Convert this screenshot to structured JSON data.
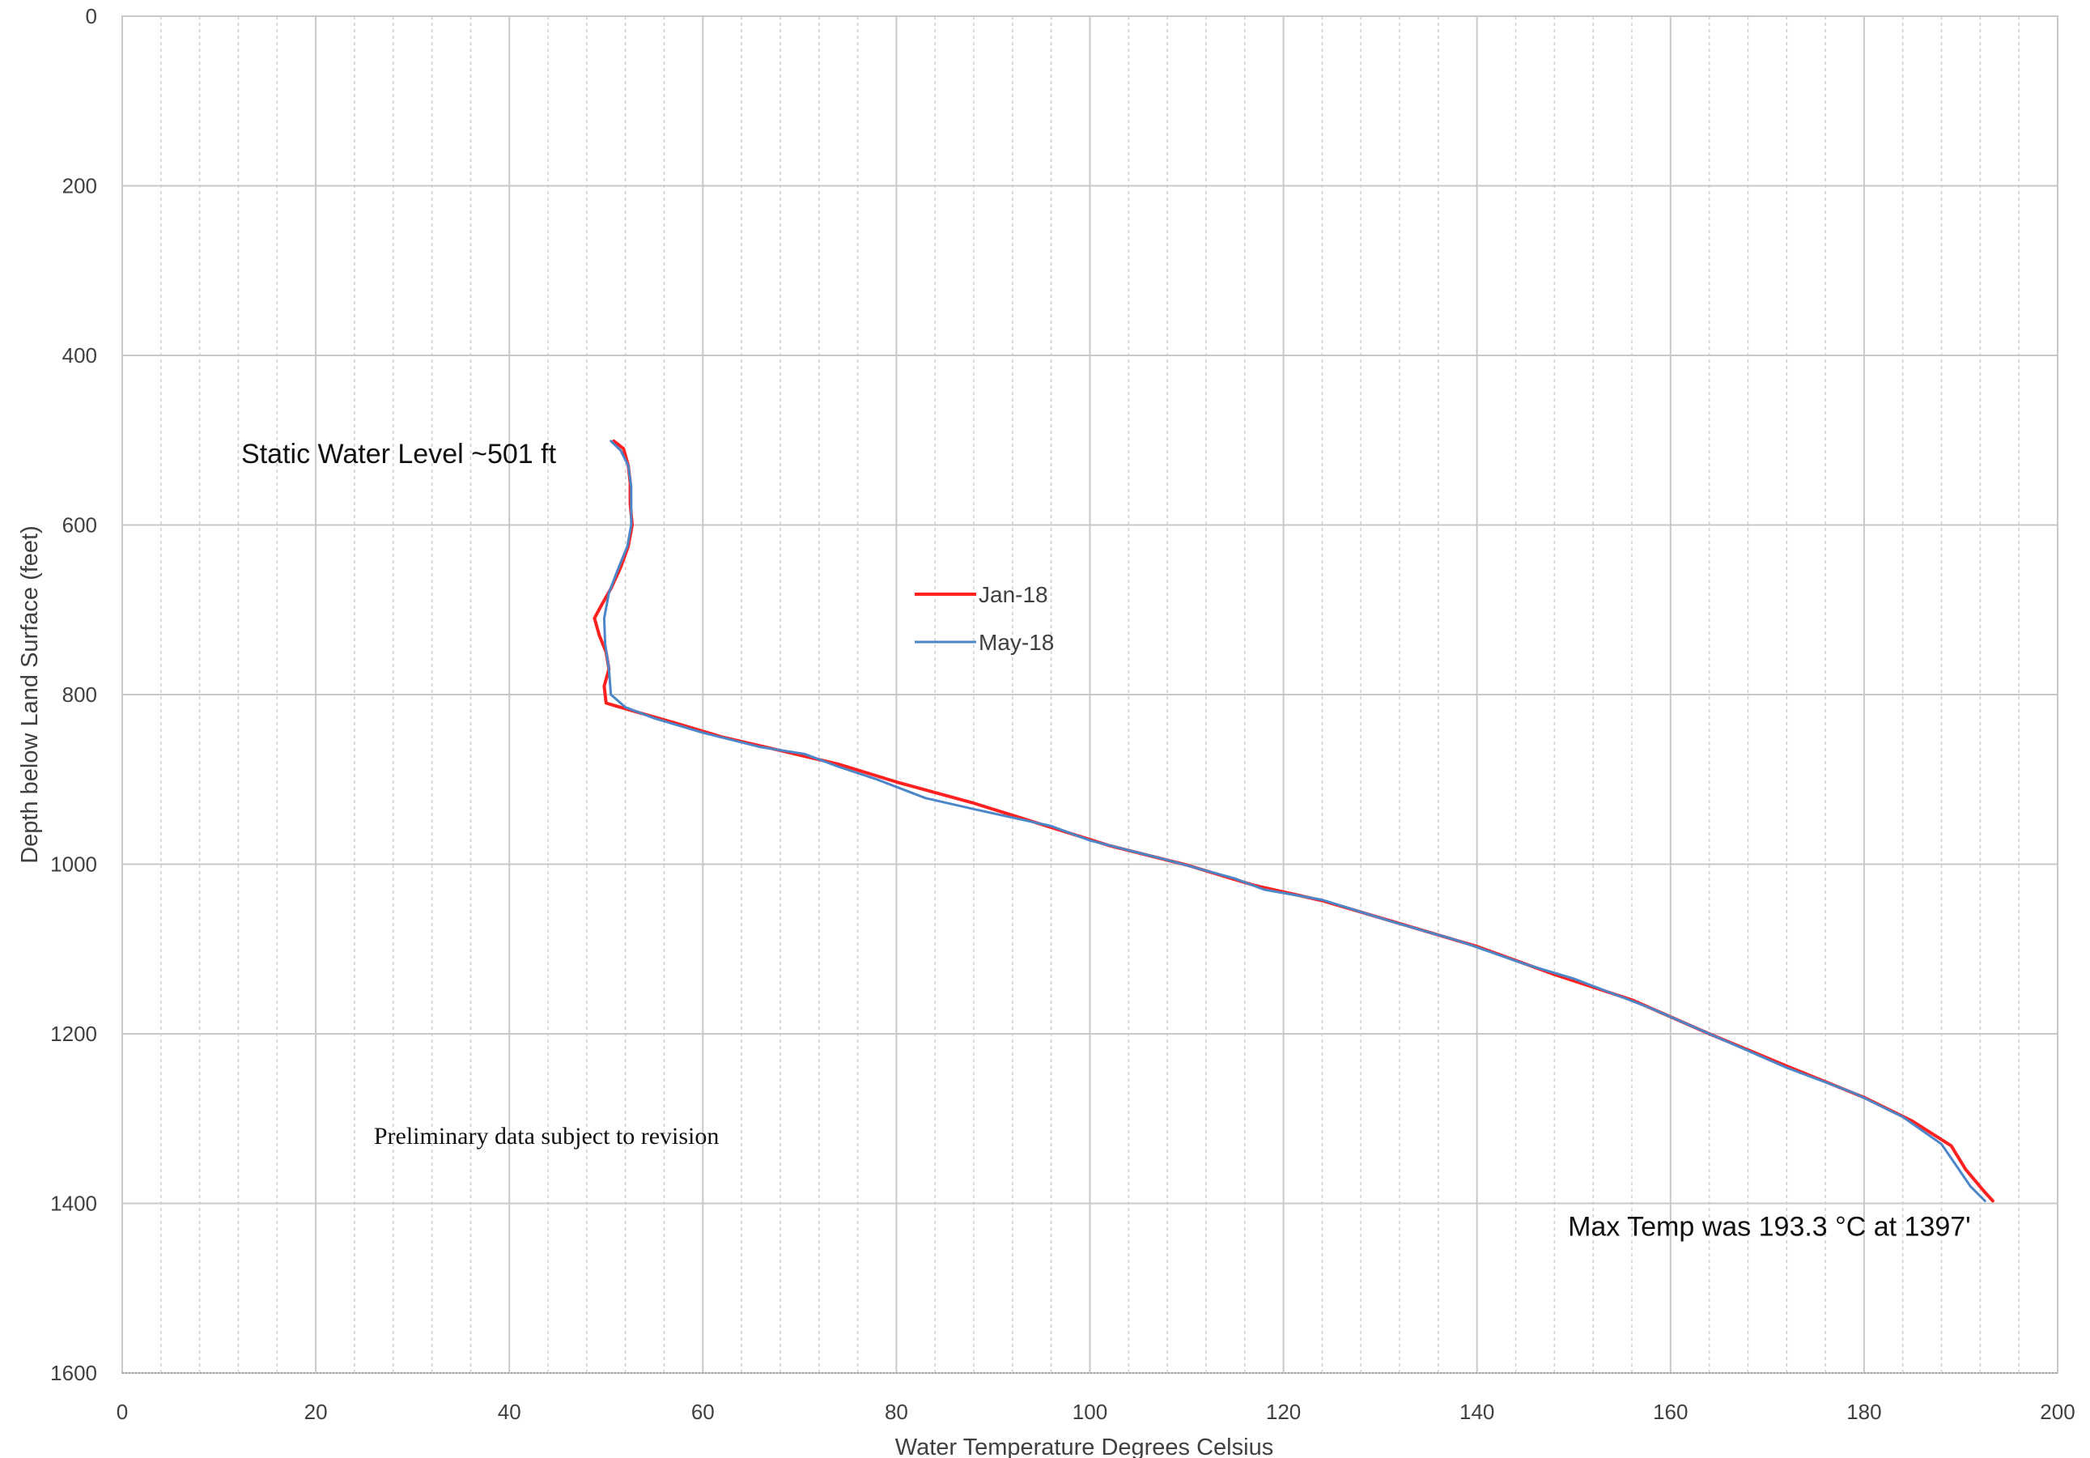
{
  "chart_data": {
    "type": "line",
    "xlabel": "Water Temperature Degrees Celsius",
    "ylabel": "Depth below Land Surface (feet)",
    "xlim": [
      0,
      200
    ],
    "ylim": [
      1600,
      0
    ],
    "y_inverted": true,
    "grid": true,
    "x_ticks": [
      "0",
      "20",
      "40",
      "60",
      "80",
      "100",
      "120",
      "140",
      "160",
      "180",
      "200"
    ],
    "y_ticks": [
      "0",
      "200",
      "400",
      "600",
      "800",
      "1000",
      "1200",
      "1400",
      "1600"
    ],
    "legend_placement": "center",
    "annotations": {
      "swl": "Static Water Level ~501 ft",
      "prelim": "Preliminary data subject to revision",
      "max": "Max Temp was 193.3 °C at 1397'"
    },
    "colors": {
      "jan": "#ff2020",
      "may": "#4a86c8",
      "grid": "#c8c8c8"
    },
    "series": [
      {
        "name": "Jan-18",
        "points": [
          [
            50.8,
            501
          ],
          [
            51.8,
            510
          ],
          [
            52.3,
            530
          ],
          [
            52.5,
            550
          ],
          [
            52.5,
            575
          ],
          [
            52.7,
            600
          ],
          [
            52.3,
            625
          ],
          [
            51.5,
            650
          ],
          [
            50.5,
            675
          ],
          [
            49.5,
            695
          ],
          [
            48.8,
            710
          ],
          [
            49.3,
            730
          ],
          [
            50.0,
            750
          ],
          [
            50.3,
            770
          ],
          [
            49.8,
            790
          ],
          [
            50.0,
            810
          ],
          [
            53.0,
            820
          ],
          [
            57.0,
            833
          ],
          [
            62.0,
            850
          ],
          [
            68.0,
            866
          ],
          [
            74.0,
            882
          ],
          [
            80.0,
            903
          ],
          [
            88.0,
            928
          ],
          [
            95.0,
            953
          ],
          [
            102.0,
            978
          ],
          [
            110.0,
            1001
          ],
          [
            117.0,
            1025
          ],
          [
            124.0,
            1043
          ],
          [
            132.0,
            1070
          ],
          [
            140.0,
            1097
          ],
          [
            148.0,
            1130
          ],
          [
            156.0,
            1160
          ],
          [
            164.0,
            1200
          ],
          [
            172.0,
            1238
          ],
          [
            180.0,
            1275
          ],
          [
            185.0,
            1303
          ],
          [
            189.0,
            1332
          ],
          [
            190.5,
            1360
          ],
          [
            192.5,
            1387
          ],
          [
            193.3,
            1397
          ]
        ]
      },
      {
        "name": "May-18",
        "points": [
          [
            50.5,
            501
          ],
          [
            51.5,
            512
          ],
          [
            52.3,
            530
          ],
          [
            52.6,
            555
          ],
          [
            52.6,
            580
          ],
          [
            52.6,
            600
          ],
          [
            52.2,
            625
          ],
          [
            51.3,
            650
          ],
          [
            50.3,
            680
          ],
          [
            49.8,
            710
          ],
          [
            49.9,
            740
          ],
          [
            50.3,
            770
          ],
          [
            50.5,
            800
          ],
          [
            52.0,
            815
          ],
          [
            55.0,
            828
          ],
          [
            60.0,
            845
          ],
          [
            66.0,
            862
          ],
          [
            70.5,
            870
          ],
          [
            74.0,
            885
          ],
          [
            78.0,
            900
          ],
          [
            83.0,
            922
          ],
          [
            88.0,
            935
          ],
          [
            96.0,
            955
          ],
          [
            100.0,
            972
          ],
          [
            108.0,
            995
          ],
          [
            115.0,
            1017
          ],
          [
            118.0,
            1030
          ],
          [
            124.0,
            1042
          ],
          [
            131.0,
            1067
          ],
          [
            138.0,
            1090
          ],
          [
            145.0,
            1118
          ],
          [
            150.0,
            1135
          ],
          [
            158.0,
            1170
          ],
          [
            165.0,
            1205
          ],
          [
            172.0,
            1240
          ],
          [
            179.0,
            1270
          ],
          [
            184.0,
            1298
          ],
          [
            188.0,
            1330
          ],
          [
            189.5,
            1355
          ],
          [
            191.0,
            1380
          ],
          [
            192.5,
            1397
          ]
        ]
      }
    ]
  }
}
